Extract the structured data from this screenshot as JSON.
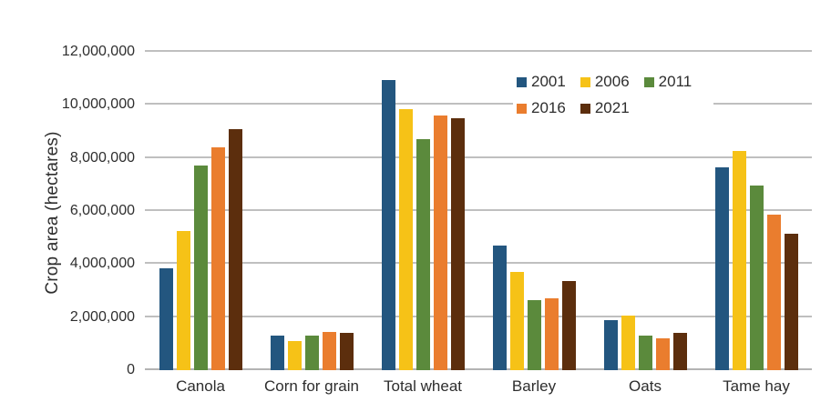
{
  "chart_data": {
    "type": "bar",
    "title": "",
    "xlabel": "",
    "ylabel": "Crop area (hectares)",
    "ylim": [
      0,
      12000000
    ],
    "ytick_interval": 2000000,
    "yticks": [
      {
        "value": 0,
        "label": "0"
      },
      {
        "value": 2000000,
        "label": "2,000,000"
      },
      {
        "value": 4000000,
        "label": "4,000,000"
      },
      {
        "value": 6000000,
        "label": "6,000,000"
      },
      {
        "value": 8000000,
        "label": "8,000,000"
      },
      {
        "value": 10000000,
        "label": "10,000,000"
      },
      {
        "value": 12000000,
        "label": "12,000,000"
      }
    ],
    "categories": [
      "Canola",
      "Corn for grain",
      "Total wheat",
      "Barley",
      "Oats",
      "Tame hay"
    ],
    "series": [
      {
        "name": "2001",
        "color": "#23567f",
        "values": [
          3850000,
          1300000,
          10950000,
          4700000,
          1900000,
          7650000
        ]
      },
      {
        "name": "2006",
        "color": "#f6c217",
        "values": [
          5250000,
          1100000,
          9850000,
          3700000,
          2050000,
          8250000
        ]
      },
      {
        "name": "2011",
        "color": "#5b8a3c",
        "values": [
          7700000,
          1300000,
          8700000,
          2650000,
          1300000,
          6950000
        ]
      },
      {
        "name": "2016",
        "color": "#ea7d2e",
        "values": [
          8400000,
          1450000,
          9600000,
          2700000,
          1200000,
          5850000
        ]
      },
      {
        "name": "2021",
        "color": "#5c2e0d",
        "values": [
          9100000,
          1400000,
          9500000,
          3350000,
          1400000,
          5150000
        ]
      }
    ],
    "legend_position": "upper-right-inside",
    "grid": true,
    "grid_color": "#bfbfbf",
    "text_color": "#2e2e2e",
    "background_color": "#ffffff"
  }
}
